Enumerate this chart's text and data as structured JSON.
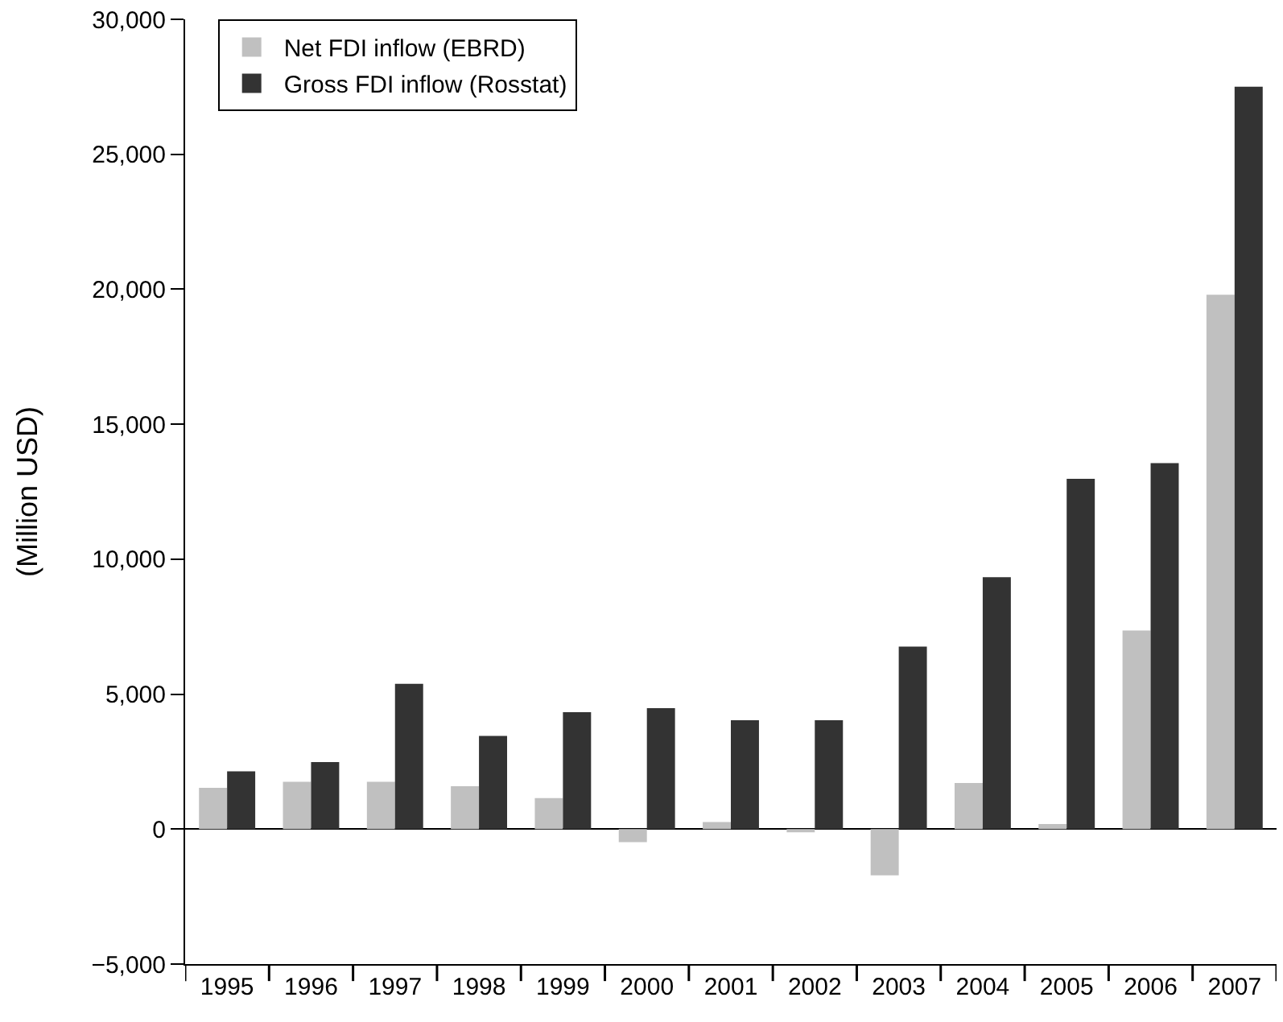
{
  "chart_data": {
    "type": "bar",
    "ylabel": "(Million USD)",
    "categories": [
      "1995",
      "1996",
      "1997",
      "1998",
      "1999",
      "2000",
      "2001",
      "2002",
      "2003",
      "2004",
      "2005",
      "2006",
      "2007"
    ],
    "series": [
      {
        "name": "Net FDI inflow (EBRD)",
        "color": "#c0c0c0",
        "values": [
          1530,
          1750,
          1750,
          1590,
          1150,
          -480,
          260,
          -120,
          -1710,
          1710,
          190,
          7360,
          19800
        ]
      },
      {
        "name": "Gross FDI inflow (Rosstat)",
        "color": "#333333",
        "values": [
          2140,
          2480,
          5380,
          3450,
          4330,
          4480,
          4030,
          4030,
          6760,
          9330,
          12980,
          13560,
          27500
        ]
      }
    ],
    "ylim": [
      -5000,
      30000
    ],
    "yticks": [
      {
        "value": -5000,
        "label": "−5,000"
      },
      {
        "value": 0,
        "label": "0"
      },
      {
        "value": 5000,
        "label": "5,000"
      },
      {
        "value": 10000,
        "label": "10,000"
      },
      {
        "value": 15000,
        "label": "15,000"
      },
      {
        "value": 20000,
        "label": "20,000"
      },
      {
        "value": 25000,
        "label": "25,000"
      },
      {
        "value": 30000,
        "label": "30,000"
      }
    ],
    "legend": "top left"
  }
}
